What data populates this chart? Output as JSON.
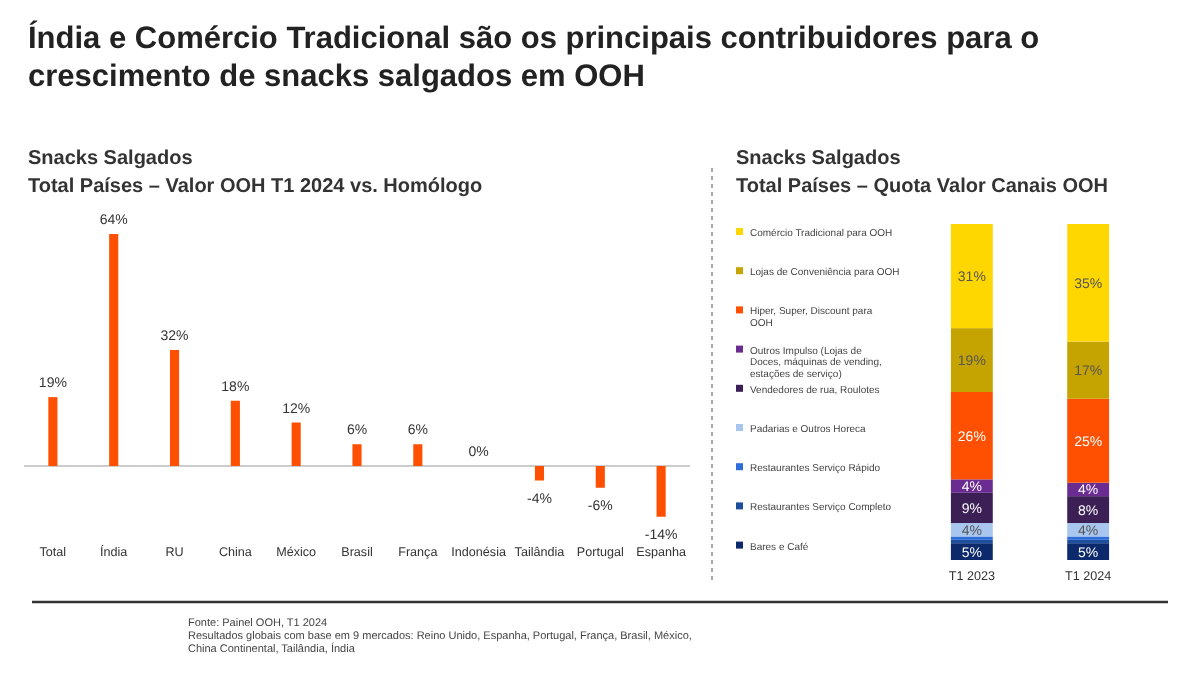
{
  "chart_data": [
    {
      "type": "other",
      "title": "Índia e Comércio Tradicional são os principais contribuidores para o crescimento de snacks salgados em OOH",
      "annotations": [
        "Fonte: Painel OOH, T1 2024",
        "Resultados globais com base em 9 mercados: Reino Unido, Espanha, Portugal, França, Brasil, México,",
        "China Continental, Tailândia, Índia"
      ]
    },
    {
      "type": "bar",
      "title": "Snacks Salgados",
      "subtitle": "Total Países – Valor OOH T1 2024 vs. Homólogo",
      "categories": [
        "Total",
        "Índia",
        "RU",
        "China",
        "México",
        "Brasil",
        "França",
        "Indonésia",
        "Tailândia",
        "Portugal",
        "Espanha"
      ],
      "values": [
        19,
        64,
        32,
        18,
        12,
        6,
        6,
        0,
        -4,
        -6,
        -14
      ],
      "value_labels": [
        "19%",
        "64%",
        "32%",
        "18%",
        "12%",
        "6%",
        "6%",
        "0%",
        "-4%",
        "-6%",
        "-14%"
      ],
      "color": "#fe5000"
    },
    {
      "type": "bar",
      "title": "Snacks Salgados",
      "subtitle": "Total Países – Quota Valor Canais OOH",
      "categories": [
        "T1 2023",
        "T1 2024"
      ],
      "stacked": true,
      "legend": "left",
      "series": [
        {
          "name": "Bares e Café",
          "color": "#0c2a6b",
          "values": [
            5,
            5
          ],
          "value_labels": [
            "5%",
            "5%"
          ]
        },
        {
          "name": "Restaurantes Serviço Completo",
          "color": "#1f4e9c",
          "values": [
            1,
            1
          ],
          "value_labels": [
            null,
            null
          ]
        },
        {
          "name": "Restaurantes Serviço Rápido",
          "color": "#2f6ed8",
          "values": [
            1,
            1
          ],
          "value_labels": [
            null,
            null
          ]
        },
        {
          "name": "Padarias e Outros Horeca",
          "color": "#a9c6ef",
          "values": [
            4,
            4
          ],
          "value_labels": [
            "4%",
            "4%"
          ]
        },
        {
          "name": "Vendedores de rua, Roulotes",
          "color": "#3b1f55",
          "values": [
            9,
            8
          ],
          "value_labels": [
            "9%",
            "8%"
          ]
        },
        {
          "name": "Outros Impulso (Lojas de Doces, máquinas de vending, estações de serviço)",
          "color": "#6a2c91",
          "values": [
            4,
            4
          ],
          "value_labels": [
            "4%",
            "4%"
          ]
        },
        {
          "name": "Hiper, Super, Discount para OOH",
          "color": "#fe5000",
          "values": [
            26,
            25
          ],
          "value_labels": [
            "26%",
            "25%"
          ]
        },
        {
          "name": "Lojas de Conveniência para OOH",
          "color": "#c5a300",
          "values": [
            19,
            17
          ],
          "value_labels": [
            "19%",
            "17%"
          ]
        },
        {
          "name": "Comércio Tradicional para OOH",
          "color": "#ffd700",
          "values": [
            31,
            35
          ],
          "value_labels": [
            "31%",
            "35%"
          ]
        }
      ]
    }
  ]
}
